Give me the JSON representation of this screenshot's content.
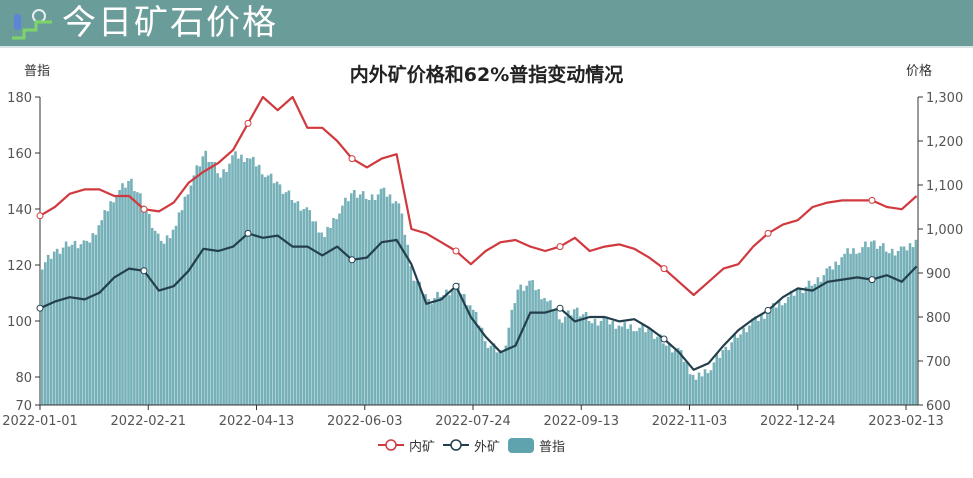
{
  "banner": {
    "title": "今日矿石价格",
    "icon": "chart-steps-icon",
    "bg_color": "#6a9c99"
  },
  "chart_data": {
    "type": "bar+line",
    "title": "内外矿价格和62%普指变动情况",
    "left_axis": {
      "name": "普指",
      "ticks": [
        70,
        80,
        100,
        120,
        140,
        160,
        180
      ],
      "ylim": [
        70,
        180
      ]
    },
    "right_axis": {
      "name": "价格",
      "ticks": [
        "600",
        "700",
        "800",
        "900",
        "1,000",
        "1,100",
        "1,200",
        "1,300"
      ],
      "ylim": [
        600,
        1300
      ]
    },
    "x_ticks": [
      "2022-01-01",
      "2022-02-21",
      "2022-04-13",
      "2022-06-03",
      "2022-07-24",
      "2022-09-13",
      "2022-11-03",
      "2022-12-24",
      "2023-02-13"
    ],
    "legend": [
      {
        "name": "内矿",
        "type": "line",
        "color": "#d03a3f"
      },
      {
        "name": "外矿",
        "type": "line",
        "color": "#233f4c"
      },
      {
        "name": "普指",
        "type": "bar",
        "color": "#5ea3ad"
      }
    ],
    "grid": false,
    "legend_position": "bottom",
    "x": [
      "2022-01-01",
      "2022-01-08",
      "2022-01-15",
      "2022-01-22",
      "2022-01-29",
      "2022-02-05",
      "2022-02-12",
      "2022-02-19",
      "2022-02-26",
      "2022-03-05",
      "2022-03-12",
      "2022-03-19",
      "2022-03-26",
      "2022-04-02",
      "2022-04-09",
      "2022-04-16",
      "2022-04-23",
      "2022-04-30",
      "2022-05-07",
      "2022-05-14",
      "2022-05-21",
      "2022-05-28",
      "2022-06-04",
      "2022-06-11",
      "2022-06-18",
      "2022-06-25",
      "2022-07-02",
      "2022-07-09",
      "2022-07-16",
      "2022-07-23",
      "2022-07-30",
      "2022-08-06",
      "2022-08-13",
      "2022-08-20",
      "2022-08-27",
      "2022-09-03",
      "2022-09-10",
      "2022-09-17",
      "2022-09-24",
      "2022-10-01",
      "2022-10-08",
      "2022-10-15",
      "2022-10-22",
      "2022-10-29",
      "2022-11-05",
      "2022-11-12",
      "2022-11-19",
      "2022-11-26",
      "2022-12-03",
      "2022-12-10",
      "2022-12-17",
      "2022-12-24",
      "2022-12-31",
      "2023-01-07",
      "2023-01-14",
      "2023-01-21",
      "2023-01-28",
      "2023-02-04",
      "2023-02-11",
      "2023-02-18"
    ],
    "series": [
      {
        "name": "内矿",
        "axis": "right",
        "values": [
          1030,
          1050,
          1080,
          1090,
          1090,
          1075,
          1075,
          1045,
          1040,
          1060,
          1105,
          1130,
          1150,
          1180,
          1240,
          1300,
          1270,
          1300,
          1230,
          1230,
          1200,
          1160,
          1140,
          1160,
          1170,
          1000,
          990,
          970,
          950,
          920,
          950,
          970,
          975,
          960,
          950,
          960,
          980,
          950,
          960,
          965,
          955,
          935,
          910,
          880,
          850,
          880,
          910,
          920,
          960,
          990,
          1010,
          1020,
          1050,
          1060,
          1065,
          1065,
          1065,
          1050,
          1045,
          1075
        ]
      },
      {
        "name": "外矿",
        "axis": "right",
        "values": [
          820,
          835,
          845,
          840,
          855,
          890,
          910,
          905,
          860,
          870,
          905,
          955,
          950,
          960,
          990,
          980,
          985,
          960,
          960,
          940,
          960,
          930,
          935,
          970,
          975,
          920,
          830,
          840,
          870,
          800,
          755,
          720,
          735,
          810,
          810,
          820,
          790,
          800,
          800,
          790,
          795,
          775,
          750,
          720,
          680,
          695,
          735,
          770,
          795,
          815,
          845,
          865,
          860,
          880,
          885,
          890,
          885,
          895,
          880,
          915
        ]
      },
      {
        "name": "普指",
        "axis": "left",
        "values": [
          120,
          125,
          128,
          127,
          136,
          146,
          150,
          140,
          127,
          134,
          150,
          160,
          152,
          159,
          158,
          153,
          148,
          143,
          138,
          130,
          140,
          146,
          144,
          146,
          142,
          116,
          107,
          110,
          112,
          104,
          92,
          88,
          112,
          113,
          107,
          101,
          104,
          100,
          100,
          98,
          98,
          96,
          92,
          88,
          79,
          84,
          90,
          96,
          100,
          104,
          108,
          111,
          114,
          118,
          124,
          126,
          128,
          125,
          125,
          130
        ]
      }
    ]
  }
}
